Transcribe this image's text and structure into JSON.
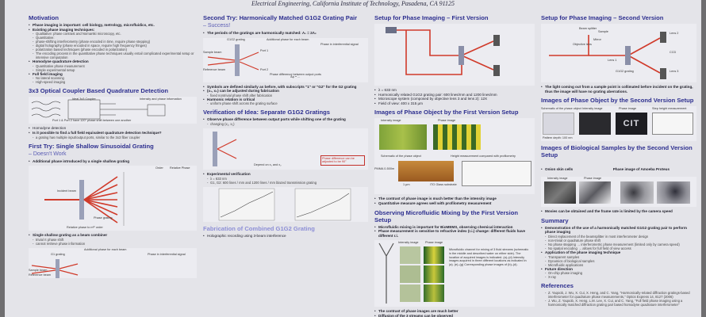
{
  "header": {
    "institution": "Electrical Engineering, California Institute of Technology, Pasadena, CA 91125"
  },
  "col1": {
    "motivation": {
      "title": "Motivation",
      "items": [
        {
          "t": "Phase imaging is important: cell biology, metrology, microfluidics, etc.",
          "b": true
        },
        {
          "t": "Existing phase imaging techniques:",
          "b": true
        },
        {
          "t": "Qualitative: phase contrast and Nomarski microscopy, etc.",
          "sub": true
        },
        {
          "t": "Quantitative:",
          "sub": true
        },
        {
          "t": "phase-shifting interferometry (phase encoded in time, require phase stepping)",
          "sub": true
        },
        {
          "t": "digital holography (phase encoded in space, require high frequency fringes)",
          "sub": true
        },
        {
          "t": "polarization based techniques (phase encoded in polarization)",
          "sub": true
        },
        {
          "t": "The encoding process in the quantitative phase techniques usually entail complicated experimental setup or intensive computation",
          "sub": true
        },
        {
          "t": "Homodyne quadrature detection",
          "b": true
        },
        {
          "t": "Quantitative phase measurement",
          "sub": true
        },
        {
          "t": "Simple experimental setup",
          "sub": true
        },
        {
          "t": "Full field imaging",
          "b": true
        },
        {
          "t": "No lateral scanning",
          "sub": true
        },
        {
          "t": "High-speed imaging",
          "sub": true
        }
      ]
    },
    "coupler": {
      "title": "3x3 Optical Coupler Based Quadrature Detection",
      "fig_labels": {
        "ideal": "Ideal 3x3 Coupler",
        "intensity": "Intensity and phase information",
        "caption": "Port 1 & Port 2 have 120° phase shift between one another"
      },
      "items": [
        {
          "t": "Homodyne detection",
          "b": false
        },
        {
          "t": "Is it possible to find a full field equivalent quadrature detection technique?",
          "b": true
        },
        {
          "t": "a grating has multiple input/output ports, similar to the 3x3 fiber coupler",
          "sub": true
        }
      ]
    },
    "first_try": {
      "title": "First Try: Single Shallow Sinusoidal Grating",
      "subtitle": "– Doesn't Work",
      "items": [
        {
          "t": "Additional phase introduced by a single shallow grating",
          "b": true
        }
      ],
      "fig_labels": {
        "order": "Order",
        "relative_phase": "Relative Phase",
        "incident": "Incident beam",
        "grating": "Phase grating",
        "caption": "Relative phase to mᵗʰ order"
      },
      "items2": [
        {
          "t": "Single shallow grating as a beam combiner",
          "b": true
        },
        {
          "t": "trivial π phase shift",
          "sub": true
        },
        {
          "t": "cannot retrieve phase information",
          "sub": true
        }
      ],
      "fig2_labels": {
        "additional": "Additional phase for each beam",
        "g1": "G1 grating",
        "sample": "Sample beam",
        "reference": "Reference beam",
        "interference": "Phase in interferential signal"
      }
    }
  },
  "col2": {
    "second_try": {
      "title": "Second Try: Harmonically Matched G1G2 Grating Pair",
      "subtitle": "– Success!",
      "items": [
        {
          "t": "The periods of the gratings are harmonically matched:  Λ₁ = 2Λ₂",
          "b": true
        }
      ],
      "fig_labels": {
        "g1g2": "G1G2 grating",
        "additional": "Additional phase for each beam",
        "sample": "Sample beam",
        "reference": "Reference beam",
        "port1": "Port 1",
        "port2": "Port 2",
        "interferential": "Phase in interferential signal",
        "difference": "Phase difference between output ports"
      },
      "items2": [
        {
          "t": "Symbols are defined similarly as before, with subscripts \"1\" or \"G2\" for the G2 grating",
          "b": true
        },
        {
          "t": "(x₁, x₂) can be adjusted during fabrication",
          "b": true
        },
        {
          "t": "fixed nontrivial phase shift after fabrication",
          "sub": true
        },
        {
          "t": "Harmonic relation is critical",
          "b": true
        },
        {
          "t": "uniform phase shift across the grating surface",
          "sub": true
        }
      ]
    },
    "verification": {
      "title": "Verification of Idea: Separate G1G2 Gratings",
      "items": [
        {
          "t": "Observe phase difference between output ports while shifting one of the grating",
          "b": true
        },
        {
          "t": "changing (x₁, x₂)",
          "sub": true
        }
      ],
      "eq_note": "Phase difference can be adjusted to be 90°",
      "depend": "Depend on x₁ and x₂",
      "items2": [
        {
          "t": "Experimental verification",
          "b": true
        },
        {
          "t": "λ = 633 nm",
          "sub": true
        },
        {
          "t": "G1, G2: 600 lines / mm and 1200 lines / mm blazed transmission grating",
          "sub": true
        }
      ]
    },
    "fabrication": {
      "title": "Fabrication of Combined G1G2 Grating",
      "items": [
        {
          "t": "Holographic recording using 3-beam interference",
          "b": false
        }
      ]
    }
  },
  "col3": {
    "setup1": {
      "title": "Setup for Phase Imaging – First Version",
      "items": [
        {
          "t": "λ = 633 nm",
          "sub": false
        },
        {
          "t": "Harmonically related G1G2 grating pair: 600 lines/mm and 1200 lines/mm",
          "sub": false
        },
        {
          "t": "Microscope system (composed by objective lens 3 and lens 2): 12X",
          "sub": false
        },
        {
          "t": "Field of view: 400 x 315 μm",
          "sub": false
        }
      ]
    },
    "images1": {
      "title": "Images of Phase Object by the First Version Setup",
      "fig_labels": {
        "intensity": "Intensity image",
        "phase": "Phase image",
        "schematic": "Schematic of the phase object",
        "height": "Height measurement compared with profilometry",
        "pmma": "PMMA 0-500m",
        "ito": "ITO Glass substrate",
        "height_label": "1 μm"
      },
      "items": [
        {
          "t": "The contrast of phase image is much better than the intensity image",
          "b": true
        },
        {
          "t": "Quantitative measure agrees well with profilometry measurement",
          "b": true
        }
      ]
    },
    "microfluidic": {
      "title": "Observing Microfluidic Mixing by the First Version Setup",
      "items": [
        {
          "t": "Microfluidic mixing is important for BioMEMS, observing chemical interaction",
          "b": true
        },
        {
          "t": "Phase measurement is sensitive to refractive index (r.i.) change: different fluids have different r.i.",
          "b": true
        }
      ],
      "fig_labels": {
        "intensity": "Intensity image",
        "phase": "Phase image",
        "caption": "Microfluidic channel for mixing of 3 fluid streams (schematic in the middle and described water on either side). The location of acquired images is indicated. (a)–(d) Intensity images acquired in three different locations as indicated in (a). (e)–(g) Corresponding phase images of (b)–(d)."
      },
      "items2": [
        {
          "t": "The contrast of phase images are much better",
          "b": true
        },
        {
          "t": "Diffusion of the 3 streams can be observed",
          "b": true
        }
      ]
    }
  },
  "col4": {
    "setup2": {
      "title": "Setup for Phase Imaging – Second Version",
      "fig_labels": {
        "beam_splitter": "Beam splitter",
        "sample": "Sample",
        "mirror": "Mirror",
        "objective": "Objective lens",
        "lens1": "Lens 1",
        "lens2": "Lens 2",
        "lens3": "Lens 3",
        "ccd": "CCD",
        "g1g2": "G1G2 grating"
      },
      "items": [
        {
          "t": "The light coming out from a sample point is collimated before incident on the grating, thus the image will have no grating aberrations.",
          "b": true
        }
      ]
    },
    "images2": {
      "title": "Images of Phase Object by the Second Version Setup",
      "fig_labels": {
        "schematic": "Schematic of the phase object",
        "intensity": "Intensity image",
        "phase": "Phase image",
        "step": "Step height measurement",
        "pattern": "Pattern depth: 100 nm",
        "cit": "CIT"
      }
    },
    "bio": {
      "title": "Images of Biological Samples by the Second Version Setup",
      "items": [
        {
          "t": "Onion skin cells",
          "b": true
        }
      ],
      "amoeba": "Phase image of Amoeba Proteus",
      "fig_labels": {
        "intensity": "Intensity image",
        "phase": "Phase image"
      },
      "items2": [
        {
          "t": "Movies can be obtained and the frame rate is limited by the camera speed",
          "b": true
        }
      ]
    },
    "summary": {
      "title": "Summary",
      "items": [
        {
          "t": "Demonstration of the use of a harmonically matched G1G2 grating pair to perform phase imaging",
          "b": true
        },
        {
          "t": "Direct replacement of the beamsplitter in most interferometer design",
          "sub": true
        },
        {
          "t": "non-trivial or quadrature phase shift",
          "sub": true
        },
        {
          "t": "No phase stepping → interferometric phase measurement (limited only by camera speed)",
          "sub": true
        },
        {
          "t": "No spatial encoding → allows for full field of view access",
          "sub": true
        },
        {
          "t": "Application of the phase imaging technique",
          "b": true
        },
        {
          "t": "Transparent samples",
          "sub": true
        },
        {
          "t": "Dynamics of biological samples",
          "sub": true
        },
        {
          "t": "Microfluidic applications",
          "sub": true
        },
        {
          "t": "Future direction",
          "b": true
        },
        {
          "t": "On-chip phase imaging",
          "sub": true
        },
        {
          "t": "X-ray",
          "sub": true
        }
      ]
    },
    "references": {
      "title": "References",
      "items": [
        {
          "t": "Z. Yaqoob, J. Wu, X. Cui, X. Heng, and C. Yang, \"Harmonically-related diffraction gratings-based interferometer for quadrature phase measurements,\" Optics Express 14, 8127 (2006)",
          "sub": true
        },
        {
          "t": "J. Wu, Z. Yaqoob, X. Heng, L.M. Lee, X. Cui, and C. Yang, \"Full field phase imaging using a harmonically matched diffraction grating pair based homodyne quadrature interferometer\"",
          "sub": true
        }
      ]
    }
  },
  "colors": {
    "heading": "#2d2f8f",
    "accent_red": "#d03a2a",
    "background": "#e4e4e9"
  }
}
